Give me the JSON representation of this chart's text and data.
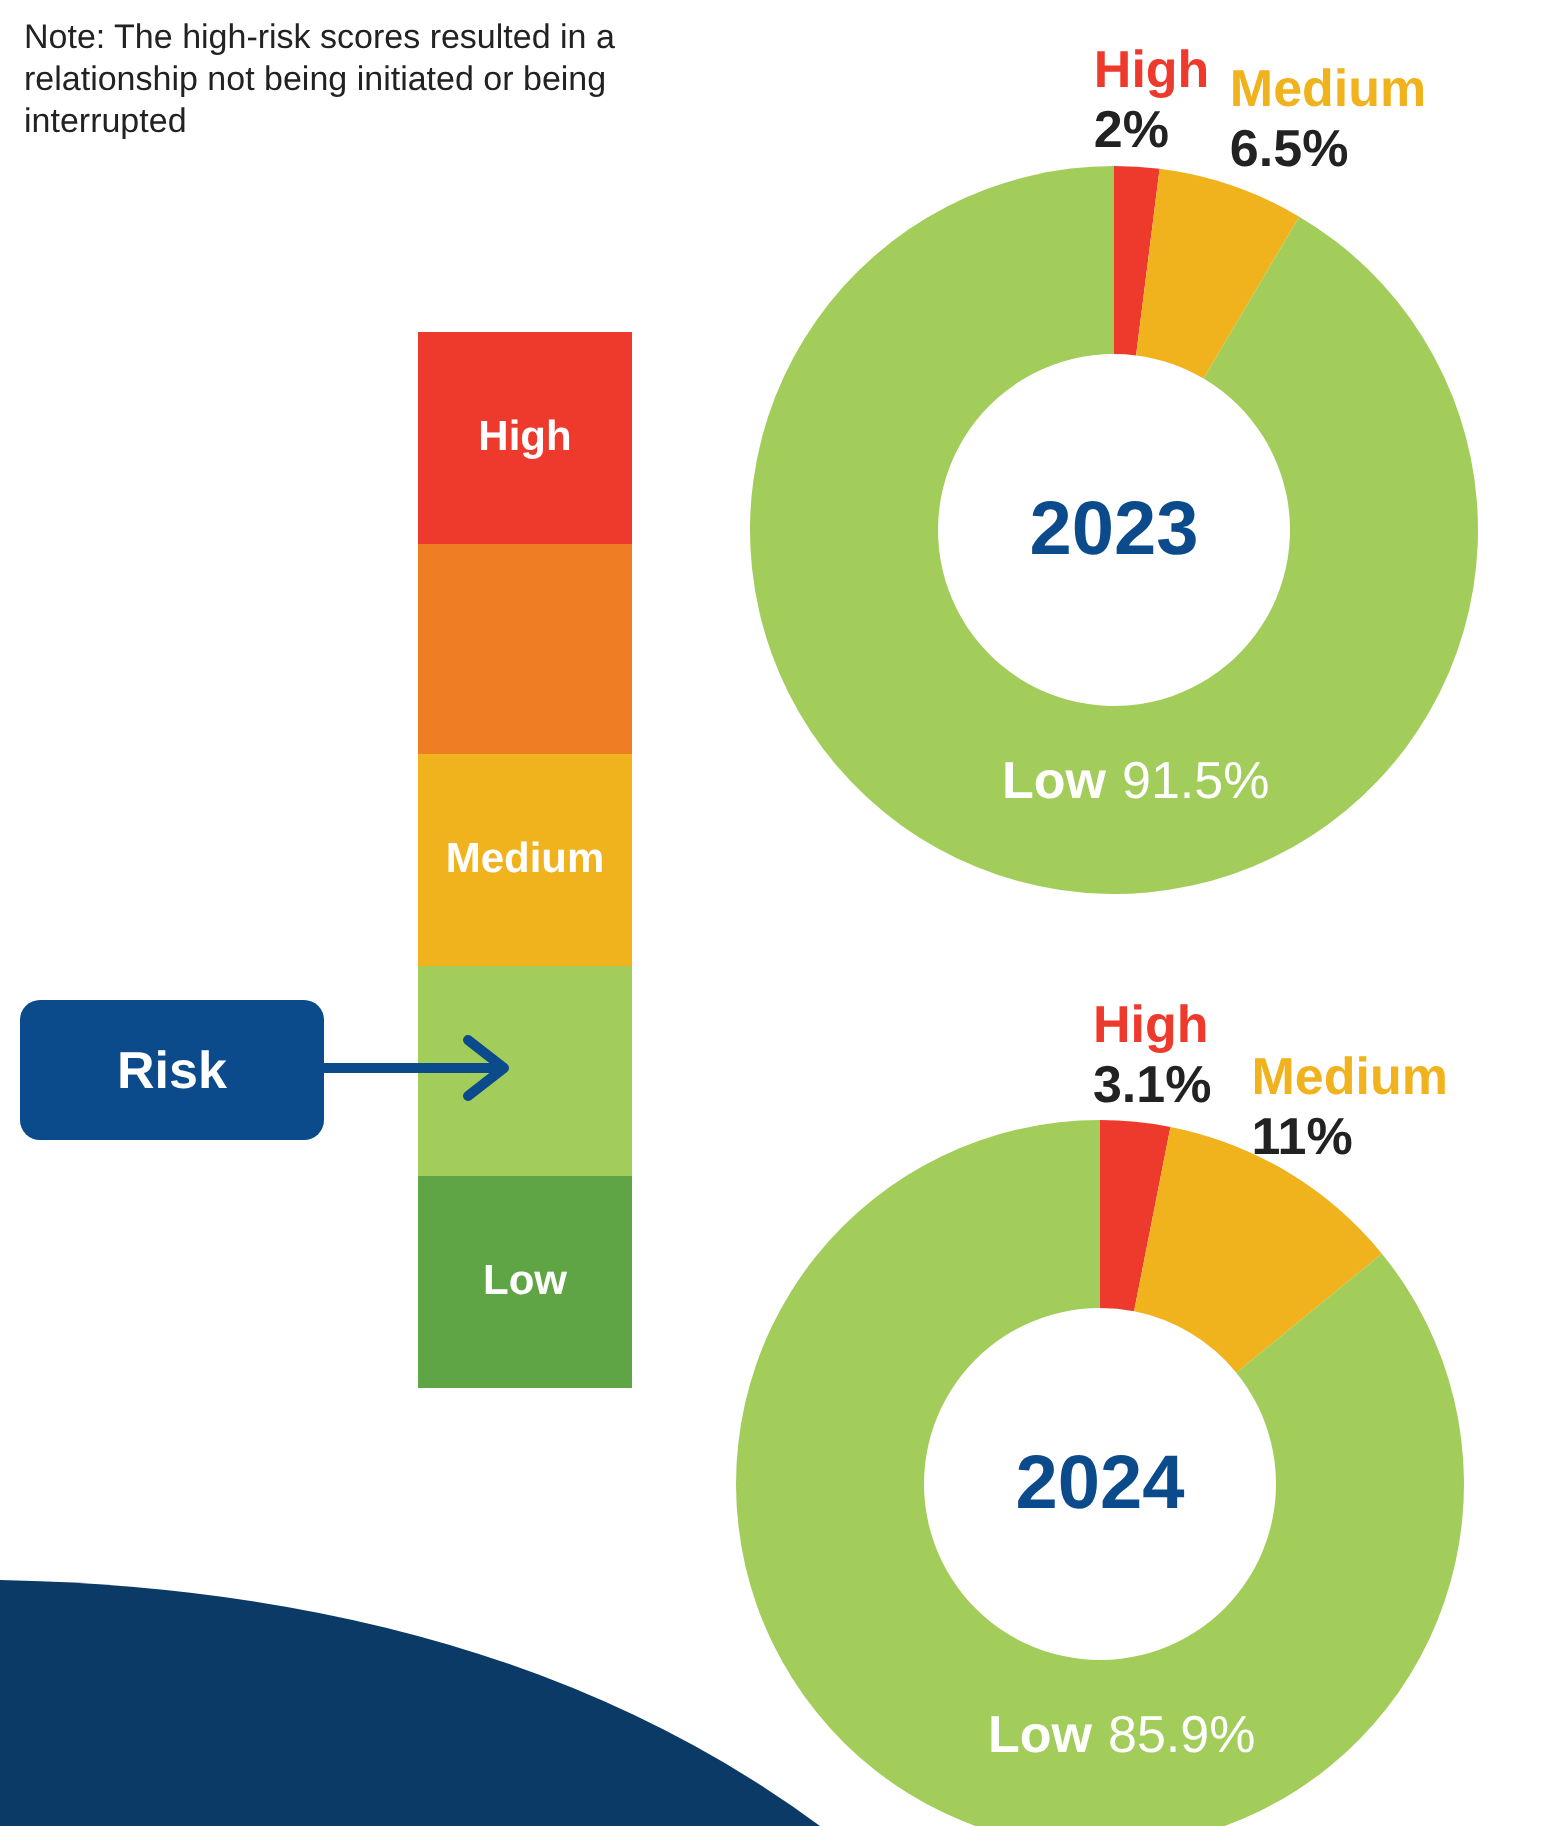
{
  "chart_data": [
    {
      "type": "donut",
      "title": "2023",
      "categories": [
        "High",
        "Medium",
        "Low"
      ],
      "values": [
        2,
        6.5,
        91.5
      ],
      "colors": [
        "#ee3a2c",
        "#f0b31e",
        "#a2cd5a"
      ],
      "value_labels": [
        "2%",
        "6.5%",
        "91.5%"
      ],
      "annotations": [
        "Note: The high-risk scores resulted in a relationship not being initiated or being interrupted"
      ]
    },
    {
      "type": "other",
      "categories": [
        "High",
        null,
        "Medium",
        null,
        "Low"
      ],
      "colors": [
        "#ee3a2c",
        "#ee7d24",
        "#f0b31e",
        "#a2cd5a",
        "#5fa545"
      ],
      "annotations": [
        "Risk"
      ]
    },
    {
      "type": "donut",
      "title": "2024",
      "categories": [
        "High",
        "Medium",
        "Low"
      ],
      "values": [
        3.1,
        11,
        85.9
      ],
      "colors": [
        "#ee3a2c",
        "#f0b31e",
        "#a2cd5a"
      ],
      "value_labels": [
        "3.1%",
        "11%",
        "85.9%"
      ]
    }
  ]
}
